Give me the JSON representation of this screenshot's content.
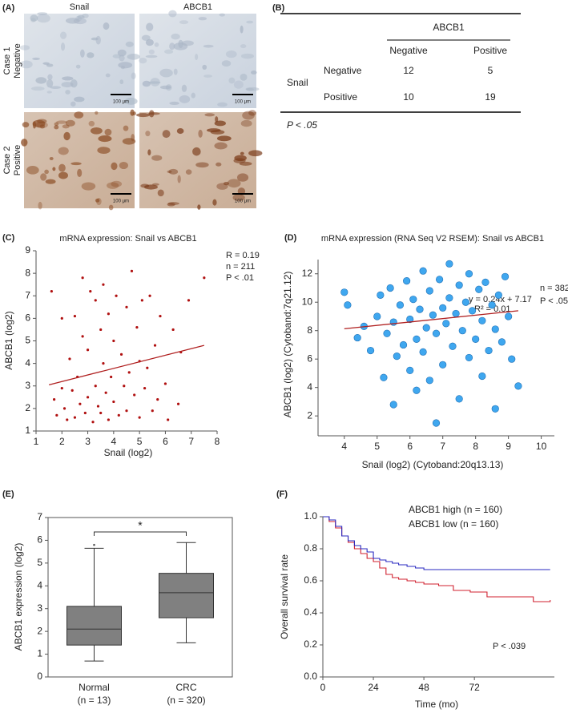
{
  "panel_labels": [
    "(A)",
    "(B)",
    "(C)",
    "(D)",
    "(E)",
    "(F)"
  ],
  "images": {
    "columns": [
      "Snail",
      "ABCB1"
    ],
    "rows": [
      [
        "Case 1",
        "Negative"
      ],
      [
        "Case 2",
        "Positive"
      ]
    ],
    "scale_bar": "100 μm"
  },
  "table": {
    "column_group": "ABCB1",
    "columns": [
      "Negative",
      "Positive"
    ],
    "row_group": "Snail",
    "rows": [
      {
        "label": "Negative",
        "cells": [
          12,
          5
        ]
      },
      {
        "label": "Positive",
        "cells": [
          10,
          19
        ]
      }
    ],
    "note": "P < .05"
  },
  "chart_data": [
    {
      "type": "scatter",
      "title": "mRNA expression: Snail vs ABCB1",
      "x_label": "Snail (log2)",
      "y_label": "ABCB1 (log2)",
      "xlim": [
        1,
        8
      ],
      "ylim": [
        1,
        9
      ],
      "xticks": [
        1,
        2,
        3,
        4,
        5,
        6,
        7,
        8
      ],
      "yticks": [
        1,
        2,
        3,
        4,
        5,
        6,
        7,
        8,
        9
      ],
      "color": "#b01010",
      "x": [
        1.6,
        1.7,
        1.8,
        2.0,
        2.0,
        2.1,
        2.2,
        2.3,
        2.4,
        2.5,
        2.5,
        2.6,
        2.7,
        2.8,
        2.8,
        2.9,
        3.0,
        3.0,
        3.1,
        3.2,
        3.3,
        3.3,
        3.4,
        3.5,
        3.5,
        3.6,
        3.6,
        3.7,
        3.8,
        3.8,
        3.9,
        4.0,
        4.0,
        4.1,
        4.2,
        4.3,
        4.4,
        4.5,
        4.5,
        4.6,
        4.7,
        4.8,
        4.9,
        5.0,
        5.0,
        5.1,
        5.2,
        5.3,
        5.4,
        5.5,
        5.6,
        5.7,
        5.8,
        6.0,
        6.1,
        6.3,
        6.5,
        6.6,
        6.9,
        7.5
      ],
      "values": [
        7.2,
        2.4,
        1.7,
        6.0,
        2.9,
        2.0,
        1.5,
        4.2,
        2.8,
        6.1,
        1.6,
        3.4,
        2.2,
        7.8,
        5.2,
        1.8,
        4.6,
        2.5,
        7.2,
        1.4,
        3.0,
        6.8,
        2.1,
        5.5,
        1.8,
        7.5,
        4.0,
        2.7,
        6.2,
        1.5,
        3.4,
        5.0,
        2.3,
        7.0,
        1.7,
        4.4,
        3.0,
        6.5,
        1.9,
        3.6,
        8.1,
        2.6,
        5.6,
        1.6,
        4.1,
        6.8,
        2.9,
        3.8,
        7.0,
        1.9,
        4.8,
        2.4,
        6.1,
        3.1,
        1.5,
        5.5,
        2.2,
        4.5,
        6.8,
        7.8
      ],
      "fit_line": {
        "x": [
          1.5,
          7.5
        ],
        "values": [
          3.05,
          4.8
        ]
      },
      "annotations": [
        "R = 0.19",
        "n = 211",
        "P < .01"
      ]
    },
    {
      "type": "scatter",
      "title": "mRNA expression (RNA Seq V2 RSEM): Snail vs ABCB1",
      "x_label": "Snail (log2) (Cytoband:20q13.13)",
      "y_label": "ABCB1 (log2) (Cytoband:7q21.12)",
      "xlim": [
        3.2,
        10.4
      ],
      "ylim": [
        0.6,
        13
      ],
      "xticks": [
        4,
        5,
        6,
        7,
        8,
        9,
        10
      ],
      "yticks": [
        2,
        4,
        6,
        8,
        10,
        12
      ],
      "color": "#3fa7ef",
      "x": [
        4.0,
        4.1,
        4.4,
        4.6,
        4.8,
        5.0,
        5.1,
        5.2,
        5.3,
        5.4,
        5.5,
        5.5,
        5.6,
        5.7,
        5.8,
        5.9,
        6.0,
        6.0,
        6.1,
        6.2,
        6.2,
        6.3,
        6.4,
        6.4,
        6.5,
        6.6,
        6.6,
        6.7,
        6.8,
        6.8,
        6.9,
        7.0,
        7.0,
        7.1,
        7.2,
        7.2,
        7.3,
        7.4,
        7.5,
        7.5,
        7.6,
        7.7,
        7.8,
        7.8,
        7.9,
        8.0,
        8.1,
        8.2,
        8.2,
        8.3,
        8.4,
        8.5,
        8.6,
        8.6,
        8.7,
        8.8,
        8.9,
        9.0,
        9.1,
        9.3
      ],
      "values": [
        10.7,
        9.8,
        7.5,
        8.3,
        6.6,
        9.0,
        10.5,
        4.7,
        7.8,
        11.0,
        2.8,
        8.6,
        6.2,
        9.8,
        7.0,
        11.5,
        5.2,
        8.8,
        10.2,
        3.8,
        7.4,
        9.5,
        12.2,
        6.5,
        8.2,
        10.8,
        4.5,
        9.1,
        1.5,
        7.8,
        11.6,
        9.6,
        5.6,
        8.5,
        12.7,
        10.3,
        6.9,
        9.2,
        3.2,
        11.2,
        8.0,
        10.0,
        6.1,
        12.0,
        9.4,
        7.4,
        10.9,
        4.8,
        8.7,
        11.4,
        6.6,
        9.8,
        2.5,
        8.1,
        10.5,
        7.2,
        11.8,
        9.0,
        6.0,
        4.1
      ],
      "fit_line": {
        "x": [
          4,
          9.3
        ],
        "values": [
          8.13,
          9.4
        ]
      },
      "annotations": [
        "n = 382",
        "P < .05",
        "y = 0.24x + 7.17",
        "R² = 0.01"
      ]
    },
    {
      "type": "box",
      "y_label": "ABCB1 expression (log2)",
      "categories": [
        "Normal",
        "CRC"
      ],
      "category_notes": [
        "(n = 13)",
        "(n = 320)"
      ],
      "ylim": [
        0,
        7
      ],
      "yticks": [
        0,
        1,
        2,
        3,
        4,
        5,
        6,
        7
      ],
      "color": "#808080",
      "whisker_low": [
        0.7,
        1.5
      ],
      "q1": [
        1.4,
        2.6
      ],
      "median": [
        2.1,
        3.7
      ],
      "q3": [
        3.1,
        4.55
      ],
      "whisker_high": [
        5.65,
        5.9
      ],
      "outliers": [
        5.8,
        null
      ],
      "significance": "*"
    },
    {
      "type": "step",
      "y_label": "Overall survival rate",
      "x_label": "Time (mo)",
      "xlim": [
        0,
        110
      ],
      "ylim": [
        0,
        1
      ],
      "xticks": [
        0,
        24,
        48,
        72
      ],
      "yticks": [
        {
          "value": 0,
          "label": "0.0"
        },
        {
          "value": 0.2,
          "label": "0.2"
        },
        {
          "value": 0.4,
          "label": "0.4"
        },
        {
          "value": 0.6,
          "label": "0.6"
        },
        {
          "value": 0.8,
          "label": "0.8"
        },
        {
          "value": 1,
          "label": "1.0"
        }
      ],
      "series": [
        {
          "name": "ABCB1 high (n = 160)",
          "color": "#d0202f",
          "x": [
            0,
            3,
            6,
            9,
            12,
            15,
            18,
            21,
            24,
            27,
            30,
            33,
            36,
            40,
            44,
            48,
            55,
            62,
            70,
            78,
            85,
            100,
            108
          ],
          "values": [
            1,
            0.97,
            0.93,
            0.88,
            0.84,
            0.8,
            0.77,
            0.74,
            0.72,
            0.68,
            0.64,
            0.62,
            0.61,
            0.6,
            0.59,
            0.58,
            0.57,
            0.54,
            0.53,
            0.5,
            0.5,
            0.47,
            0.48
          ]
        },
        {
          "name": "ABCB1 low (n = 160)",
          "color": "#2a2ac0",
          "x": [
            0,
            3,
            6,
            9,
            12,
            15,
            18,
            21,
            24,
            27,
            30,
            33,
            36,
            40,
            44,
            48,
            60,
            75,
            90,
            108
          ],
          "values": [
            1,
            0.98,
            0.94,
            0.88,
            0.85,
            0.82,
            0.8,
            0.78,
            0.74,
            0.73,
            0.72,
            0.71,
            0.7,
            0.69,
            0.68,
            0.67,
            0.67,
            0.67,
            0.67,
            0.67
          ]
        }
      ],
      "annotations": [
        "P < .039"
      ]
    }
  ]
}
